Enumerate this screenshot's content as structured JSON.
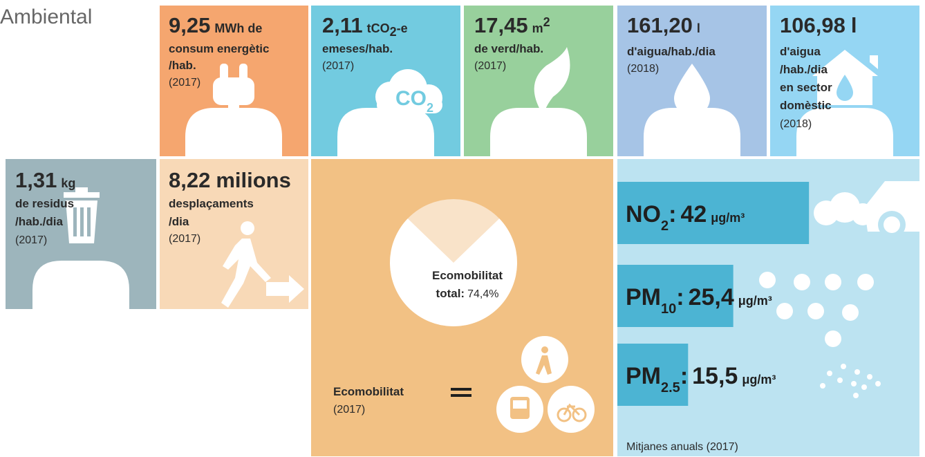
{
  "title": "Ambiental",
  "tiles": [
    {
      "value": "9,25",
      "unit": "MWh de",
      "lines": [
        "consum energètic",
        "/hab."
      ],
      "year": "(2017)"
    },
    {
      "value": "2,11",
      "unit": "tCO",
      "unit_sub": "2",
      "unit_after": "-e",
      "lines": [
        "emeses/hab."
      ],
      "year": "(2017)",
      "icon_text": "CO",
      "icon_sub": "2"
    },
    {
      "value": "17,45",
      "unit": "m",
      "unit_sup": "2",
      "lines": [
        "de verd/hab."
      ],
      "year": "(2017)"
    },
    {
      "value": "161,20",
      "unit": "l",
      "lines": [
        "d'aigua/hab./dia"
      ],
      "year": "(2018)"
    },
    {
      "value": "106,98",
      "unit": "l",
      "lines": [
        "d'aigua",
        "/hab./dia",
        "en sector",
        "domèstic"
      ],
      "year": "(2018)"
    },
    {
      "value": "1,31",
      "unit": "kg",
      "lines": [
        "de residus",
        "/hab./dia"
      ],
      "year": "(2017)"
    },
    {
      "value": "8,22",
      "unit": "milions",
      "lines": [
        "desplaçaments",
        "/dia"
      ],
      "year": "(2017)"
    }
  ],
  "ecomobility": {
    "lines": [
      "Ecomobilitat",
      "total:"
    ],
    "value": 74.4,
    "value_label": "74,4%",
    "legend": "Ecomobilitat",
    "year": "(2017)"
  },
  "air": {
    "items": [
      {
        "name": "NO",
        "sub": "2",
        "sep": ":",
        "value": 42,
        "unit": "μg/m³"
      },
      {
        "name": "PM",
        "sub": "10",
        "sep": ":",
        "value": 25.4,
        "value_label": "25,4",
        "unit": "μg/m³"
      },
      {
        "name": "PM",
        "sub": "2.5",
        "sep": ":",
        "value": 15.5,
        "value_label": "15,5",
        "unit": "μg/m³"
      }
    ],
    "note": "Mitjanes anuals (2017)"
  }
}
